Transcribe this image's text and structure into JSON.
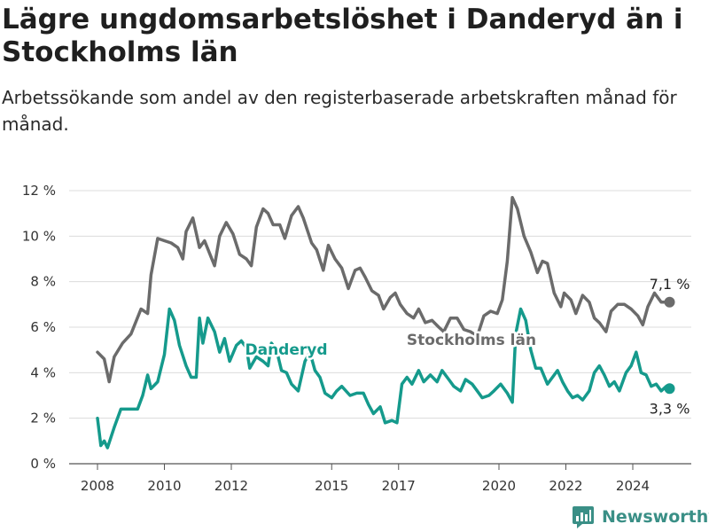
{
  "header": {
    "title": "Lägre ungdomsarbetslöshet i Danderyd än i Stockholms län",
    "subtitle": "Arbetssökande som andel av den registerbaserade arbetskraften månad för månad."
  },
  "brand": {
    "name": "Newsworthy",
    "icon": "newsworthy-logo-icon",
    "color": "#3a8f86"
  },
  "chart_data": {
    "type": "line",
    "title": "Lägre ungdomsarbetslöshet i Danderyd än i Stockholms län",
    "subtitle": "Arbetssökande som andel av den registerbaserade arbetskraften månad för månad.",
    "xlabel": "",
    "ylabel": "",
    "xlim": [
      2007.0,
      2026.1
    ],
    "ylim": [
      0,
      12
    ],
    "grid": true,
    "legend": "inline labels",
    "x_ticks": [
      2008,
      2010,
      2012,
      2015,
      2017,
      2020,
      2022,
      2024
    ],
    "y_ticks": [
      {
        "value": 0,
        "label": "0 %"
      },
      {
        "value": 2,
        "label": "2 %"
      },
      {
        "value": 4,
        "label": "4 %"
      },
      {
        "value": 6,
        "label": "6 %"
      },
      {
        "value": 8,
        "label": "8 %"
      },
      {
        "value": 10,
        "label": "10 %"
      },
      {
        "value": 12,
        "label": "12 %"
      }
    ],
    "series": [
      {
        "name": "Stockholms län",
        "color": "#6b6b6b",
        "end_label": "7,1 %",
        "points": [
          [
            2008.0,
            4.9
          ],
          [
            2008.2,
            4.6
          ],
          [
            2008.35,
            3.6
          ],
          [
            2008.5,
            4.7
          ],
          [
            2008.75,
            5.3
          ],
          [
            2009.0,
            5.7
          ],
          [
            2009.3,
            6.8
          ],
          [
            2009.5,
            6.6
          ],
          [
            2009.6,
            8.3
          ],
          [
            2009.8,
            9.9
          ],
          [
            2010.0,
            9.8
          ],
          [
            2010.2,
            9.7
          ],
          [
            2010.4,
            9.5
          ],
          [
            2010.55,
            9.0
          ],
          [
            2010.65,
            10.2
          ],
          [
            2010.85,
            10.8
          ],
          [
            2011.05,
            9.5
          ],
          [
            2011.2,
            9.8
          ],
          [
            2011.5,
            8.7
          ],
          [
            2011.65,
            10.0
          ],
          [
            2011.85,
            10.6
          ],
          [
            2012.05,
            10.1
          ],
          [
            2012.25,
            9.2
          ],
          [
            2012.45,
            9.0
          ],
          [
            2012.6,
            8.7
          ],
          [
            2012.75,
            10.4
          ],
          [
            2012.95,
            11.2
          ],
          [
            2013.1,
            11.0
          ],
          [
            2013.25,
            10.5
          ],
          [
            2013.45,
            10.5
          ],
          [
            2013.6,
            9.9
          ],
          [
            2013.8,
            10.9
          ],
          [
            2014.0,
            11.3
          ],
          [
            2014.15,
            10.8
          ],
          [
            2014.4,
            9.7
          ],
          [
            2014.55,
            9.4
          ],
          [
            2014.75,
            8.5
          ],
          [
            2014.9,
            9.6
          ],
          [
            2015.1,
            9.0
          ],
          [
            2015.3,
            8.6
          ],
          [
            2015.5,
            7.7
          ],
          [
            2015.7,
            8.5
          ],
          [
            2015.85,
            8.6
          ],
          [
            2016.0,
            8.2
          ],
          [
            2016.2,
            7.6
          ],
          [
            2016.4,
            7.4
          ],
          [
            2016.55,
            6.8
          ],
          [
            2016.75,
            7.3
          ],
          [
            2016.9,
            7.5
          ],
          [
            2017.05,
            7.0
          ],
          [
            2017.25,
            6.6
          ],
          [
            2017.45,
            6.4
          ],
          [
            2017.6,
            6.8
          ],
          [
            2017.8,
            6.2
          ],
          [
            2018.0,
            6.3
          ],
          [
            2018.2,
            6.0
          ],
          [
            2018.35,
            5.8
          ],
          [
            2018.55,
            6.4
          ],
          [
            2018.75,
            6.4
          ],
          [
            2018.95,
            5.9
          ],
          [
            2019.15,
            5.8
          ],
          [
            2019.35,
            5.6
          ],
          [
            2019.55,
            6.5
          ],
          [
            2019.75,
            6.7
          ],
          [
            2019.95,
            6.6
          ],
          [
            2020.1,
            7.2
          ],
          [
            2020.25,
            8.9
          ],
          [
            2020.4,
            11.7
          ],
          [
            2020.55,
            11.2
          ],
          [
            2020.75,
            10.0
          ],
          [
            2020.95,
            9.3
          ],
          [
            2021.15,
            8.4
          ],
          [
            2021.3,
            8.9
          ],
          [
            2021.45,
            8.8
          ],
          [
            2021.65,
            7.5
          ],
          [
            2021.85,
            6.9
          ],
          [
            2021.95,
            7.5
          ],
          [
            2022.15,
            7.2
          ],
          [
            2022.3,
            6.6
          ],
          [
            2022.5,
            7.4
          ],
          [
            2022.7,
            7.1
          ],
          [
            2022.85,
            6.4
          ],
          [
            2023.0,
            6.2
          ],
          [
            2023.2,
            5.8
          ],
          [
            2023.35,
            6.7
          ],
          [
            2023.55,
            7.0
          ],
          [
            2023.75,
            7.0
          ],
          [
            2023.95,
            6.8
          ],
          [
            2024.15,
            6.5
          ],
          [
            2024.3,
            6.1
          ],
          [
            2024.45,
            6.9
          ],
          [
            2024.65,
            7.5
          ],
          [
            2024.85,
            7.1
          ],
          [
            2025.1,
            7.1
          ]
        ]
      },
      {
        "name": "Danderyd",
        "color": "#159a8c",
        "end_label": "3,3 %",
        "points": [
          [
            2008.0,
            2.0
          ],
          [
            2008.1,
            0.8
          ],
          [
            2008.2,
            1.0
          ],
          [
            2008.3,
            0.7
          ],
          [
            2008.5,
            1.6
          ],
          [
            2008.7,
            2.4
          ],
          [
            2009.0,
            2.4
          ],
          [
            2009.2,
            2.4
          ],
          [
            2009.35,
            3.0
          ],
          [
            2009.5,
            3.9
          ],
          [
            2009.6,
            3.3
          ],
          [
            2009.8,
            3.6
          ],
          [
            2010.0,
            4.8
          ],
          [
            2010.15,
            6.8
          ],
          [
            2010.3,
            6.3
          ],
          [
            2010.45,
            5.2
          ],
          [
            2010.65,
            4.3
          ],
          [
            2010.8,
            3.8
          ],
          [
            2010.95,
            3.8
          ],
          [
            2011.05,
            6.4
          ],
          [
            2011.15,
            5.3
          ],
          [
            2011.3,
            6.4
          ],
          [
            2011.5,
            5.8
          ],
          [
            2011.65,
            4.9
          ],
          [
            2011.8,
            5.5
          ],
          [
            2011.95,
            4.5
          ],
          [
            2012.15,
            5.2
          ],
          [
            2012.3,
            5.4
          ],
          [
            2012.45,
            5.1
          ],
          [
            2012.55,
            4.2
          ],
          [
            2012.75,
            4.7
          ],
          [
            2012.95,
            4.5
          ],
          [
            2013.1,
            4.3
          ],
          [
            2013.2,
            5.3
          ],
          [
            2013.35,
            5.0
          ],
          [
            2013.5,
            4.1
          ],
          [
            2013.65,
            4.0
          ],
          [
            2013.8,
            3.5
          ],
          [
            2014.0,
            3.2
          ],
          [
            2014.2,
            4.5
          ],
          [
            2014.35,
            4.9
          ],
          [
            2014.5,
            4.1
          ],
          [
            2014.65,
            3.8
          ],
          [
            2014.8,
            3.1
          ],
          [
            2015.0,
            2.9
          ],
          [
            2015.15,
            3.2
          ],
          [
            2015.3,
            3.4
          ],
          [
            2015.55,
            3.0
          ],
          [
            2015.75,
            3.1
          ],
          [
            2015.95,
            3.1
          ],
          [
            2016.1,
            2.6
          ],
          [
            2016.25,
            2.2
          ],
          [
            2016.45,
            2.5
          ],
          [
            2016.6,
            1.8
          ],
          [
            2016.8,
            1.9
          ],
          [
            2016.95,
            1.8
          ],
          [
            2017.1,
            3.5
          ],
          [
            2017.25,
            3.8
          ],
          [
            2017.4,
            3.5
          ],
          [
            2017.6,
            4.1
          ],
          [
            2017.75,
            3.6
          ],
          [
            2017.95,
            3.9
          ],
          [
            2018.15,
            3.6
          ],
          [
            2018.3,
            4.1
          ],
          [
            2018.5,
            3.7
          ],
          [
            2018.65,
            3.4
          ],
          [
            2018.85,
            3.2
          ],
          [
            2019.0,
            3.7
          ],
          [
            2019.2,
            3.5
          ],
          [
            2019.35,
            3.2
          ],
          [
            2019.5,
            2.9
          ],
          [
            2019.7,
            3.0
          ],
          [
            2019.85,
            3.2
          ],
          [
            2020.05,
            3.5
          ],
          [
            2020.25,
            3.1
          ],
          [
            2020.4,
            2.7
          ],
          [
            2020.5,
            5.7
          ],
          [
            2020.65,
            6.8
          ],
          [
            2020.8,
            6.3
          ],
          [
            2020.95,
            5.0
          ],
          [
            2021.1,
            4.2
          ],
          [
            2021.25,
            4.2
          ],
          [
            2021.45,
            3.5
          ],
          [
            2021.6,
            3.8
          ],
          [
            2021.75,
            4.1
          ],
          [
            2021.9,
            3.6
          ],
          [
            2022.05,
            3.2
          ],
          [
            2022.2,
            2.9
          ],
          [
            2022.35,
            3.0
          ],
          [
            2022.5,
            2.8
          ],
          [
            2022.7,
            3.2
          ],
          [
            2022.85,
            4.0
          ],
          [
            2023.0,
            4.3
          ],
          [
            2023.15,
            3.9
          ],
          [
            2023.3,
            3.4
          ],
          [
            2023.45,
            3.6
          ],
          [
            2023.6,
            3.2
          ],
          [
            2023.8,
            4.0
          ],
          [
            2023.95,
            4.3
          ],
          [
            2024.1,
            4.9
          ],
          [
            2024.25,
            4.0
          ],
          [
            2024.4,
            3.9
          ],
          [
            2024.55,
            3.4
          ],
          [
            2024.7,
            3.5
          ],
          [
            2024.85,
            3.2
          ],
          [
            2025.0,
            3.4
          ],
          [
            2025.1,
            3.3
          ]
        ]
      }
    ]
  }
}
